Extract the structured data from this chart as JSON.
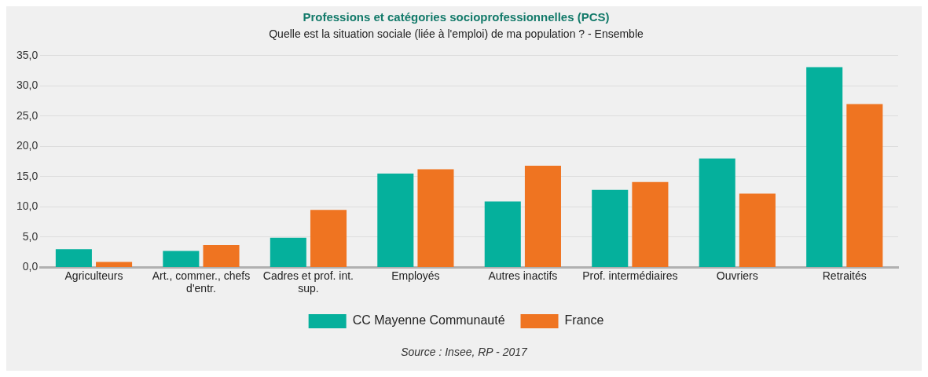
{
  "chart_data": {
    "type": "bar",
    "title": "Professions et catégories socioprofessionnelles (PCS)",
    "subtitle": "Quelle est la situation sociale (liée à l'emploi) de ma population ? - Ensemble",
    "categories": [
      "Agriculteurs",
      "Art., commer., chefs d'entr.",
      "Cadres et prof. int. sup.",
      "Employés",
      "Autres inactifs",
      "Prof. intermédiaires",
      "Ouvriers",
      "Retraités"
    ],
    "series": [
      {
        "name": "CC Mayenne Communauté",
        "color": "#05b09c",
        "values": [
          3.0,
          2.7,
          4.9,
          15.5,
          10.9,
          12.8,
          18.0,
          33.1
        ]
      },
      {
        "name": "France",
        "color": "#ef7421",
        "values": [
          0.9,
          3.7,
          9.5,
          16.2,
          16.8,
          14.1,
          12.2,
          27.0
        ]
      }
    ],
    "ylim": [
      0,
      35
    ],
    "yticks": [
      {
        "value": 0,
        "label": "0,0"
      },
      {
        "value": 5,
        "label": "5,0"
      },
      {
        "value": 10,
        "label": "10,0"
      },
      {
        "value": 15,
        "label": "15,0"
      },
      {
        "value": 20,
        "label": "20,0"
      },
      {
        "value": 25,
        "label": "25,0"
      },
      {
        "value": 30,
        "label": "30,0"
      },
      {
        "value": 35,
        "label": "35,0"
      }
    ],
    "grid": "y",
    "legend": "bottom",
    "annotations": [
      "Source : Insee, RP - 2017"
    ]
  }
}
